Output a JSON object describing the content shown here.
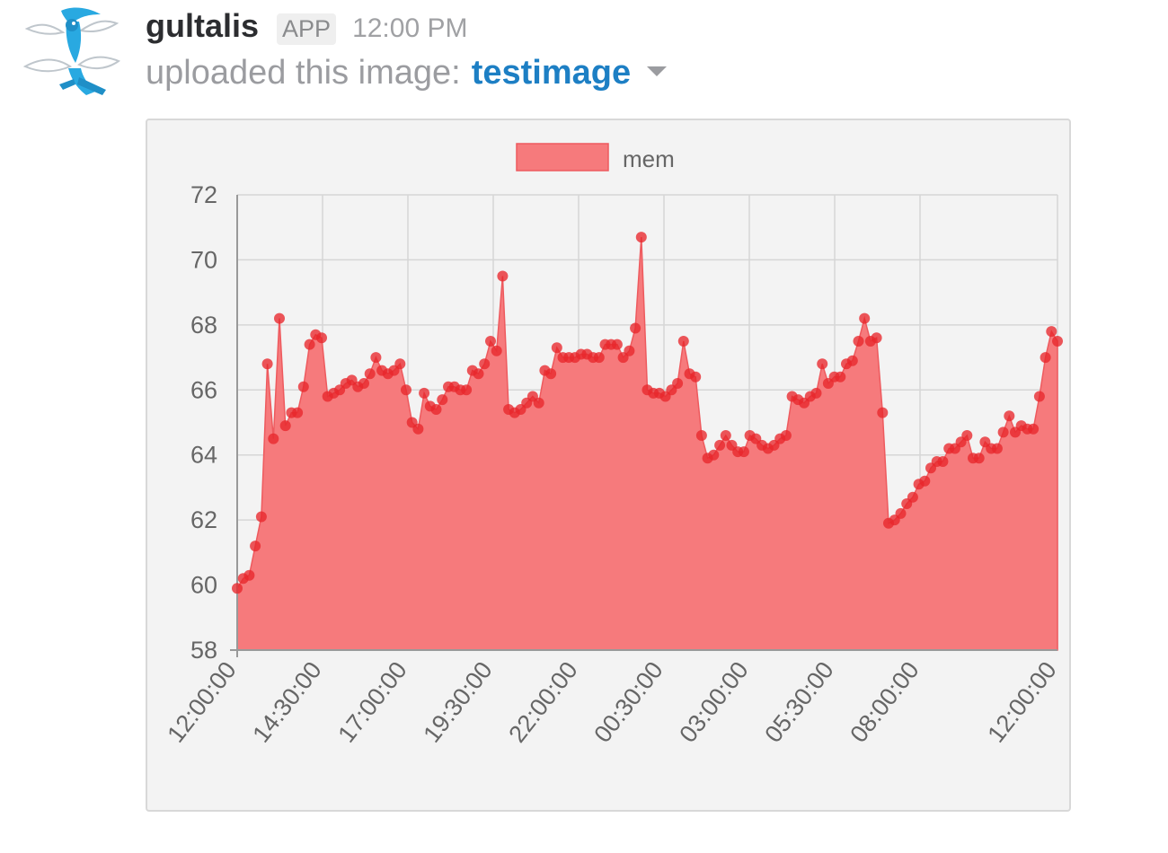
{
  "message": {
    "sender": "gultalis",
    "badge": "APP",
    "timestamp": "12:00 PM",
    "upload_text": "uploaded this image:",
    "file_name": "testimage",
    "avatar_icon": "bird-avatar-icon",
    "menu_icon": "caret-down-icon"
  },
  "chart_data": {
    "type": "area",
    "title": "",
    "xlabel": "",
    "ylabel": "",
    "ylim": [
      58,
      72
    ],
    "yticks": [
      58,
      60,
      62,
      64,
      66,
      68,
      70,
      72
    ],
    "xtick_labels": [
      "12:00:00",
      "14:30:00",
      "17:00:00",
      "19:30:00",
      "22:00:00",
      "00:30:00",
      "03:00:00",
      "05:30:00",
      "08:00:00",
      "12:00:00"
    ],
    "grid": true,
    "legend": "top-center",
    "series": [
      {
        "name": "mem",
        "color": "#f67a7c",
        "point_color": "#e8262b",
        "values": [
          59.9,
          60.2,
          60.3,
          61.2,
          62.1,
          66.8,
          64.5,
          68.2,
          64.9,
          65.3,
          65.3,
          66.1,
          67.4,
          67.7,
          67.6,
          65.8,
          65.9,
          66.0,
          66.2,
          66.3,
          66.1,
          66.2,
          66.5,
          67.0,
          66.6,
          66.5,
          66.6,
          66.8,
          66.0,
          65.0,
          64.8,
          65.9,
          65.5,
          65.4,
          65.7,
          66.1,
          66.1,
          66.0,
          66.0,
          66.6,
          66.5,
          66.8,
          67.5,
          67.2,
          69.5,
          65.4,
          65.3,
          65.4,
          65.6,
          65.8,
          65.6,
          66.6,
          66.5,
          67.3,
          67.0,
          67.0,
          67.0,
          67.1,
          67.1,
          67.0,
          67.0,
          67.4,
          67.4,
          67.4,
          67.0,
          67.2,
          67.9,
          70.7,
          66.0,
          65.9,
          65.9,
          65.8,
          66.0,
          66.2,
          67.5,
          66.5,
          66.4,
          64.6,
          63.9,
          64.0,
          64.3,
          64.6,
          64.3,
          64.1,
          64.1,
          64.6,
          64.5,
          64.3,
          64.2,
          64.3,
          64.5,
          64.6,
          65.8,
          65.7,
          65.6,
          65.8,
          65.9,
          66.8,
          66.2,
          66.4,
          66.4,
          66.8,
          66.9,
          67.5,
          68.2,
          67.5,
          67.6,
          65.3,
          61.9,
          62.0,
          62.2,
          62.5,
          62.7,
          63.1,
          63.2,
          63.6,
          63.8,
          63.8,
          64.2,
          64.2,
          64.4,
          64.6,
          63.9,
          63.9,
          64.4,
          64.2,
          64.2,
          64.7,
          65.2,
          64.7,
          64.9,
          64.8,
          64.8,
          65.8,
          67.0,
          67.8,
          67.5
        ]
      }
    ]
  }
}
